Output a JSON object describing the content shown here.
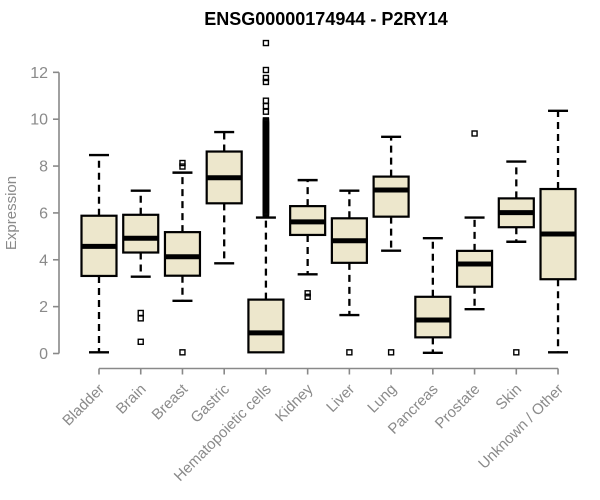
{
  "chart_data": {
    "type": "boxplot",
    "title": "ENSG00000174944 - P2RY14",
    "ylabel": "Expression",
    "xlabel": "",
    "ylim": [
      0,
      13.25
    ],
    "yticks": [
      0,
      2,
      4,
      6,
      8,
      10,
      12
    ],
    "grid": false,
    "legend": false,
    "categories": [
      "Bladder",
      "Brain",
      "Breast",
      "Gastric",
      "Hematopoietic cells",
      "Kidney",
      "Liver",
      "Lung",
      "Pancreas",
      "Prostate",
      "Skin",
      "Unknown / Other"
    ],
    "series": [
      {
        "label": "Bladder",
        "whislo": 0.05,
        "q1": 3.31,
        "med": 4.57,
        "q3": 5.88,
        "whishi": 8.47,
        "outliers": []
      },
      {
        "label": "Brain",
        "whislo": 3.28,
        "q1": 4.31,
        "med": 4.92,
        "q3": 5.92,
        "whishi": 6.95,
        "outliers": [
          1.73,
          1.5,
          0.5
        ]
      },
      {
        "label": "Breast",
        "whislo": 2.25,
        "q1": 3.32,
        "med": 4.13,
        "q3": 5.18,
        "whishi": 7.72,
        "outliers": [
          8.13,
          7.98,
          0.05
        ]
      },
      {
        "label": "Gastric",
        "whislo": 3.85,
        "q1": 6.41,
        "med": 7.5,
        "q3": 8.62,
        "whishi": 9.45,
        "outliers": []
      },
      {
        "label": "Hematopoietic cells",
        "whislo": 0.05,
        "q1": 0.05,
        "med": 0.88,
        "q3": 2.3,
        "whishi": 5.8,
        "outliers": [
          10.32,
          10.56,
          10.79,
          11.59,
          11.76,
          12.1,
          13.25
        ],
        "outliers_dense": {
          "from": 5.9,
          "to": 9.97,
          "step": 0.05
        }
      },
      {
        "label": "Kidney",
        "whislo": 3.38,
        "q1": 5.06,
        "med": 5.62,
        "q3": 6.29,
        "whishi": 7.4,
        "outliers": [
          2.57,
          2.42
        ]
      },
      {
        "label": "Liver",
        "whislo": 1.64,
        "q1": 3.87,
        "med": 4.81,
        "q3": 5.77,
        "whishi": 6.95,
        "outliers": [
          0.05
        ]
      },
      {
        "label": "Lung",
        "whislo": 4.39,
        "q1": 5.84,
        "med": 6.98,
        "q3": 7.55,
        "whishi": 9.25,
        "outliers": [
          0.05
        ]
      },
      {
        "label": "Pancreas",
        "whislo": 0.03,
        "q1": 0.69,
        "med": 1.43,
        "q3": 2.42,
        "whishi": 4.92,
        "outliers": []
      },
      {
        "label": "Prostate",
        "whislo": 1.89,
        "q1": 2.85,
        "med": 3.82,
        "q3": 4.38,
        "whishi": 5.8,
        "outliers": [
          9.39
        ]
      },
      {
        "label": "Skin",
        "whislo": 4.77,
        "q1": 5.39,
        "med": 6.01,
        "q3": 6.62,
        "whishi": 8.19,
        "outliers": [
          0.05
        ]
      },
      {
        "label": "Unknown / Other",
        "whislo": 0.05,
        "q1": 3.17,
        "med": 5.1,
        "q3": 7.02,
        "whishi": 10.36,
        "outliers": []
      }
    ],
    "colors": {
      "box_fill": "#EDE7CC",
      "box_stroke": "#000000",
      "median": "#000000",
      "whisker": "#000000",
      "outlier": "#000000",
      "axis": "#898989",
      "tick_label": "#8a8a8a",
      "title": "#000000",
      "background": "#ffffff"
    }
  }
}
